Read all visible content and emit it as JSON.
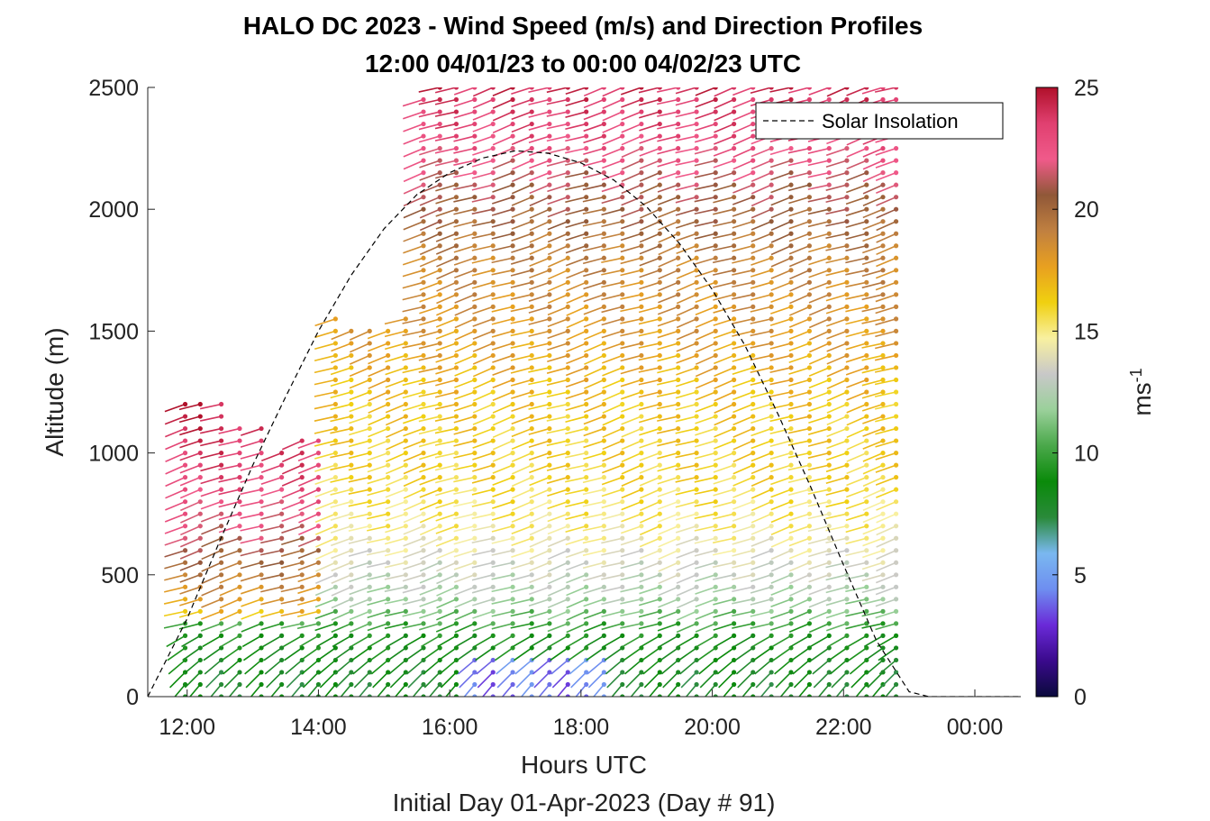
{
  "chart_data": {
    "type": "wind-barb-profile",
    "title": "HALO DC 2023 - Wind Speed (m/s) and Direction Profiles",
    "subtitle": "12:00 04/01/23 to 00:00 04/02/23  UTC",
    "xlabel": "Hours UTC",
    "xlabel2": "Initial Day 01-Apr-2023 (Day # 91)",
    "ylabel": "Altitude (m)",
    "x_range_hours": [
      11.4,
      24.7
    ],
    "xticks": [
      {
        "hour": 12,
        "label": "12:00"
      },
      {
        "hour": 14,
        "label": "14:00"
      },
      {
        "hour": 16,
        "label": "16:00"
      },
      {
        "hour": 18,
        "label": "18:00"
      },
      {
        "hour": 20,
        "label": "20:00"
      },
      {
        "hour": 22,
        "label": "22:00"
      },
      {
        "hour": 24,
        "label": "00:00"
      }
    ],
    "ylim": [
      0,
      2500
    ],
    "yticks": [
      0,
      500,
      1000,
      1500,
      2000,
      2500
    ],
    "colorbar": {
      "label": "ms",
      "label_exponent": "-1",
      "range": [
        0,
        25
      ],
      "ticks": [
        0,
        5,
        10,
        15,
        20,
        25
      ]
    },
    "legend": {
      "entries": [
        "Solar Insolation"
      ],
      "placement": "top-right"
    },
    "solar_insolation_curve": {
      "hours": [
        11.4,
        12.0,
        12.5,
        13.0,
        13.5,
        14.0,
        14.5,
        15.0,
        15.5,
        16.0,
        16.5,
        17.0,
        17.5,
        18.0,
        18.5,
        19.0,
        19.5,
        20.0,
        20.5,
        21.0,
        21.5,
        22.0,
        22.5,
        23.0,
        23.3,
        24.7
      ],
      "altitude_equiv_m": [
        0,
        320,
        640,
        950,
        1230,
        1500,
        1730,
        1920,
        2060,
        2150,
        2210,
        2240,
        2230,
        2190,
        2120,
        2010,
        1860,
        1670,
        1440,
        1160,
        860,
        540,
        230,
        20,
        0,
        0
      ]
    },
    "profiles": {
      "hours": [
        11.97,
        12.2,
        12.52,
        12.8,
        13.13,
        13.44,
        13.75,
        14.0,
        14.26,
        14.5,
        14.78,
        15.06,
        15.33,
        15.6,
        15.85,
        16.1,
        16.38,
        16.66,
        16.96,
        17.25,
        17.52,
        17.8,
        18.08,
        18.35,
        18.63,
        18.92,
        19.2,
        19.48,
        19.76,
        20.05,
        20.33,
        20.62,
        20.9,
        21.2,
        21.48,
        21.78,
        22.05,
        22.35,
        22.6,
        22.8
      ],
      "top_altitude_m": [
        1200,
        1210,
        1210,
        1130,
        1130,
        1000,
        1060,
        1090,
        1550,
        1500,
        1540,
        1500,
        1570,
        2450,
        2500,
        2500,
        2500,
        2500,
        2500,
        2500,
        2500,
        2500,
        2500,
        2500,
        2500,
        2500,
        2500,
        2500,
        2500,
        2500,
        2500,
        2500,
        2500,
        2500,
        2500,
        2500,
        2500,
        2500,
        2500,
        2500
      ],
      "altitude_step_m": 50,
      "speed_by_altitude_m": [
        {
          "alt": 0,
          "speed": 8
        },
        {
          "alt": 100,
          "speed": 8
        },
        {
          "alt": 250,
          "speed": 9
        },
        {
          "alt": 400,
          "speed": 12
        },
        {
          "alt": 550,
          "speed": 13.5
        },
        {
          "alt": 700,
          "speed": 15
        },
        {
          "alt": 900,
          "speed": 16
        },
        {
          "alt": 1200,
          "speed": 16.5
        },
        {
          "alt": 1500,
          "speed": 18
        },
        {
          "alt": 1800,
          "speed": 19
        },
        {
          "alt": 2100,
          "speed": 21
        },
        {
          "alt": 2300,
          "speed": 23
        },
        {
          "alt": 2500,
          "speed": 24
        }
      ],
      "direction_note_deg": 250
    },
    "colors": {
      "solar_line": "#000000",
      "colormap": [
        "#0a0a3c",
        "#3a0a8c",
        "#6a2ad8",
        "#6e8ef0",
        "#7ab8f0",
        "#2a8a3a",
        "#0a8a0a",
        "#4aa84a",
        "#9ad09a",
        "#c8c8c8",
        "#f8f0a0",
        "#f0d010",
        "#e8a020",
        "#c08040",
        "#905838",
        "#f05a8a",
        "#e04070",
        "#b0102a"
      ]
    }
  }
}
